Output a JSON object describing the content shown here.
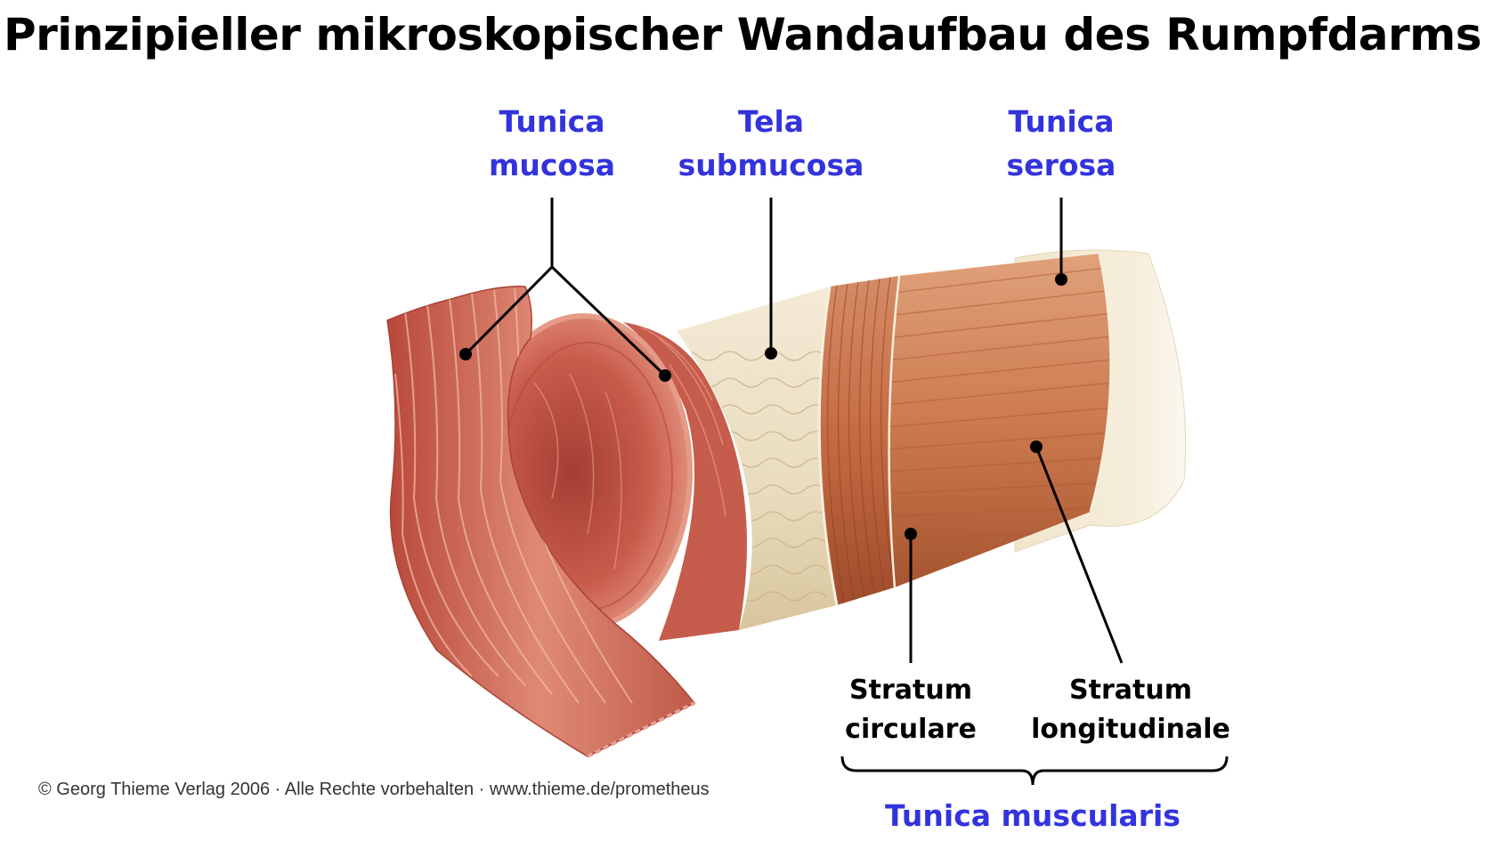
{
  "title": "Prinzipieller mikroskopischer Wandaufbau des Rumpfdarms",
  "labels": {
    "tunica_mucosa": [
      "Tunica",
      "mucosa"
    ],
    "tela_submucosa": [
      "Tela",
      "submucosa"
    ],
    "tunica_serosa": [
      "Tunica",
      "serosa"
    ],
    "stratum_circulare": [
      "Stratum",
      "circulare"
    ],
    "stratum_longitudinale": [
      "Stratum",
      "longitudinale"
    ],
    "tunica_muscularis": "Tunica muscularis"
  },
  "copyright": "© Georg Thieme Verlag 2006 · Alle Rechte vorbehalten · www.thieme.de/prometheus",
  "colors": {
    "label_blue": "#3333dd",
    "leader_line": "#000000",
    "mucosa": "#c8604e",
    "submucosa": "#eee2c8",
    "muscularis": "#c96e44",
    "serosa": "#f2e6cf"
  }
}
